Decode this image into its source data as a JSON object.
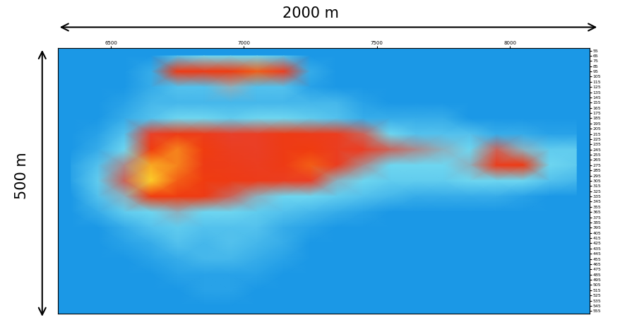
{
  "chart_data": {
    "type": "heatmap",
    "annotations": [
      "2000 m",
      "500 m"
    ],
    "xlim": [
      6300,
      8300
    ],
    "xticks": [
      6500,
      7000,
      7500,
      8000
    ],
    "ylim": [
      560,
      50
    ],
    "yticks": [
      55,
      65,
      75,
      85,
      95,
      105,
      115,
      125,
      135,
      145,
      155,
      165,
      175,
      185,
      195,
      205,
      215,
      225,
      235,
      245,
      255,
      265,
      275,
      285,
      295,
      305,
      315,
      325,
      335,
      345,
      355,
      365,
      375,
      385,
      395,
      405,
      415,
      425,
      435,
      445,
      455,
      465,
      475,
      485,
      495,
      505,
      515,
      525,
      535,
      545,
      555
    ],
    "color_range": [
      0,
      1
    ],
    "cells": {
      "x": [
        6350,
        6450,
        6550,
        6650,
        6750,
        6850,
        6950,
        7050,
        7150,
        7250,
        7350,
        7450,
        7550,
        7650,
        7750,
        7850,
        7950,
        8050,
        8150,
        8250
      ],
      "y": [
        65,
        95,
        125,
        155,
        185,
        215,
        245,
        275,
        305,
        335,
        365,
        395,
        425,
        455,
        485,
        515,
        545
      ],
      "values": [
        [
          0,
          0,
          0,
          0,
          0.2,
          0.3,
          0.3,
          0.3,
          0.2,
          0,
          0,
          0,
          0,
          0,
          0,
          0,
          0,
          0,
          0,
          0
        ],
        [
          0,
          0,
          0,
          0.1,
          0.7,
          0.7,
          0.75,
          0.8,
          0.6,
          0.1,
          0,
          0,
          0,
          0,
          0,
          0,
          0,
          0,
          0,
          0
        ],
        [
          0,
          0,
          0,
          0.1,
          0.2,
          0.2,
          0.35,
          0.2,
          0.2,
          0.05,
          0,
          0,
          0,
          0,
          0,
          0,
          0,
          0,
          0,
          0
        ],
        [
          0,
          0,
          0.05,
          0.15,
          0.15,
          0.15,
          0.15,
          0.15,
          0.15,
          0.15,
          0.15,
          0.05,
          0,
          0,
          0,
          0,
          0,
          0,
          0,
          0
        ],
        [
          0,
          0,
          0.1,
          0.2,
          0.3,
          0.3,
          0.25,
          0.3,
          0.3,
          0.25,
          0.2,
          0.1,
          0.1,
          0.1,
          0.1,
          0,
          0,
          0,
          0,
          0
        ],
        [
          0,
          0.05,
          0.2,
          0.5,
          0.7,
          0.65,
          0.5,
          0.55,
          0.7,
          0.65,
          0.6,
          0.45,
          0.3,
          0.2,
          0.2,
          0.2,
          0.1,
          0.1,
          0.05,
          0.05
        ],
        [
          0,
          0.1,
          0.3,
          0.75,
          0.85,
          0.75,
          0.6,
          0.55,
          0.7,
          0.75,
          0.6,
          0.55,
          0.45,
          0.4,
          0.35,
          0.3,
          0.45,
          0.35,
          0.25,
          0.25
        ],
        [
          0.05,
          0.2,
          0.4,
          0.9,
          0.85,
          0.7,
          0.65,
          0.6,
          0.7,
          0.8,
          0.6,
          0.4,
          0.3,
          0.3,
          0.3,
          0.35,
          0.65,
          0.7,
          0.3,
          0.25
        ],
        [
          0.05,
          0.25,
          0.45,
          0.95,
          0.8,
          0.75,
          0.7,
          0.65,
          0.6,
          0.55,
          0.35,
          0.3,
          0.25,
          0.25,
          0.25,
          0.3,
          0.3,
          0.3,
          0.2,
          0.15
        ],
        [
          0,
          0.2,
          0.35,
          0.75,
          0.75,
          0.7,
          0.45,
          0.35,
          0.3,
          0.3,
          0.25,
          0.2,
          0.15,
          0.1,
          0.1,
          0.1,
          0.1,
          0.05,
          0,
          0
        ],
        [
          0,
          0.1,
          0.25,
          0.3,
          0.35,
          0.3,
          0.3,
          0.25,
          0.2,
          0.15,
          0.1,
          0.05,
          0,
          0,
          0,
          0,
          0,
          0,
          0,
          0
        ],
        [
          0,
          0,
          0.1,
          0.2,
          0.25,
          0.2,
          0.2,
          0.2,
          0.1,
          0.05,
          0,
          0,
          0,
          0,
          0,
          0,
          0,
          0,
          0,
          0
        ],
        [
          0,
          0,
          0.05,
          0.1,
          0.2,
          0.15,
          0.2,
          0.15,
          0.1,
          0,
          0,
          0,
          0,
          0,
          0,
          0,
          0,
          0,
          0,
          0
        ],
        [
          0,
          0,
          0,
          0.05,
          0.1,
          0.15,
          0.15,
          0.1,
          0.05,
          0,
          0,
          0,
          0,
          0,
          0,
          0,
          0,
          0,
          0,
          0
        ],
        [
          0,
          0,
          0,
          0,
          0.05,
          0.05,
          0.05,
          0.05,
          0,
          0,
          0,
          0,
          0,
          0,
          0,
          0,
          0,
          0,
          0,
          0
        ],
        [
          0,
          0,
          0,
          0,
          0,
          0.05,
          0.05,
          0,
          0,
          0,
          0,
          0,
          0,
          0,
          0,
          0,
          0,
          0,
          0,
          0
        ],
        [
          0,
          0,
          0,
          0,
          0,
          0,
          0,
          0,
          0,
          0,
          0,
          0,
          0,
          0,
          0,
          0,
          0,
          0,
          0,
          0
        ]
      ]
    }
  }
}
